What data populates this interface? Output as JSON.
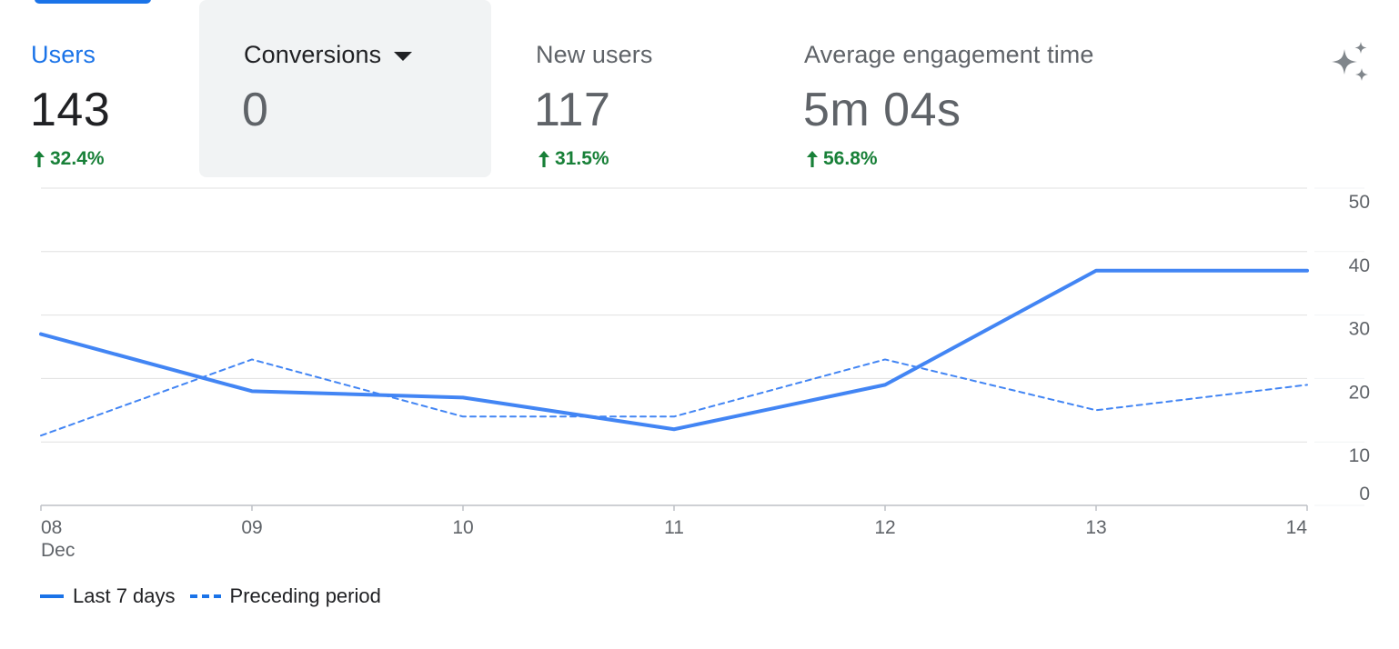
{
  "metrics": [
    {
      "label": "Users",
      "value": "143",
      "change": "32.4%",
      "selected": true
    },
    {
      "label": "Conversions",
      "value": "0",
      "change": "",
      "dropdown": true
    },
    {
      "label": "New users",
      "value": "117",
      "change": "31.5%"
    },
    {
      "label": "Average engagement time",
      "value": "5m 04s",
      "change": "56.8%"
    }
  ],
  "icons": {
    "insights": "sparkle-icon",
    "change_up": "arrow-up-icon",
    "metric_menu": "dropdown-caret-icon"
  },
  "colors": {
    "accent": "#1a73e8",
    "series": "#4285f4",
    "positive": "#188038",
    "selected_bg": "#f1f3f4"
  },
  "chart_data": {
    "type": "line",
    "x": [
      "08",
      "09",
      "10",
      "11",
      "12",
      "13",
      "14"
    ],
    "x_sublabel": "Dec",
    "series": [
      {
        "name": "Last 7 days",
        "values": [
          27,
          18,
          17,
          12,
          19,
          37,
          37
        ],
        "style": "solid"
      },
      {
        "name": "Preceding period",
        "values": [
          11,
          23,
          14,
          14,
          23,
          15,
          19
        ],
        "style": "dashed"
      }
    ],
    "ylim": [
      0,
      50
    ],
    "yticks": [
      "0",
      "10",
      "20",
      "30",
      "40",
      "50"
    ],
    "y_axis_side": "right",
    "grid": true,
    "legend_position": "bottom-left"
  }
}
